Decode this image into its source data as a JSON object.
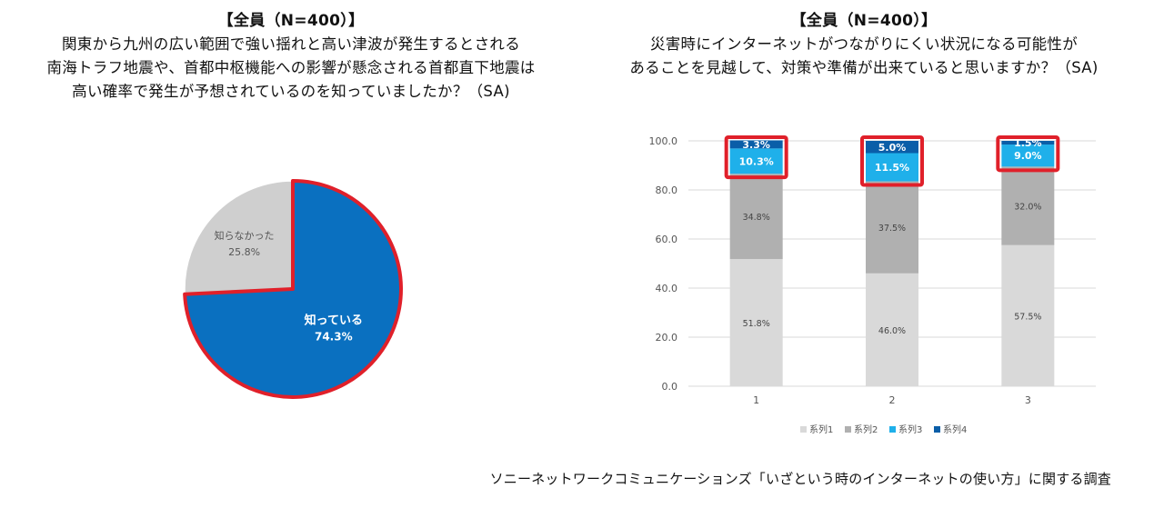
{
  "left": {
    "header": "【全員（N=400）】",
    "question_lines": [
      "関東から九州の広い範囲で強い揺れと高い津波が発生するとされる",
      "南海トラフ地震や、首都中枢機能への影響が懸念される首都直下地震は",
      "高い確率で発生が予想されているのを知っていましたか？（SA)"
    ]
  },
  "right": {
    "header": "【全員（N=400）】",
    "question_lines": [
      "災害時にインターネットがつながりにくい状況になる可能性が",
      "あることを見越して、対策や準備が出来ていると思いますか？（SA)"
    ]
  },
  "footer": "ソニーネットワークコミュニケーションズ「いざという時のインターネットの使い方」に関する調査",
  "chart_data": [
    {
      "type": "pie",
      "slices": [
        {
          "label": "知っている",
          "value": 74.3,
          "value_label": "74.3%",
          "color": "#0a70c0"
        },
        {
          "label": "知らなかった",
          "value": 25.8,
          "value_label": "25.8%",
          "color": "#cfcfcf"
        }
      ],
      "highlight_color": "#e0202a"
    },
    {
      "type": "bar",
      "stacked": true,
      "categories": [
        "1",
        "2",
        "3"
      ],
      "series": [
        {
          "name": "系列1",
          "values": [
            51.8,
            46.0,
            57.5
          ],
          "labels": [
            "51.8%",
            "46.0%",
            "57.5%"
          ],
          "color": "#d9d9d9"
        },
        {
          "name": "系列2",
          "values": [
            34.8,
            37.5,
            32.0
          ],
          "labels": [
            "34.8%",
            "37.5%",
            "32.0%"
          ],
          "color": "#b0b0b0"
        },
        {
          "name": "系列3",
          "values": [
            10.3,
            11.5,
            9.0
          ],
          "labels": [
            "10.3%",
            "11.5%",
            "9.0%"
          ],
          "color": "#1fb0ea"
        },
        {
          "name": "系列4",
          "values": [
            3.3,
            5.0,
            1.5
          ],
          "labels": [
            "3.3%",
            "5.0%",
            "1.5%"
          ],
          "color": "#0a5ea8"
        }
      ],
      "ylim": [
        0,
        100
      ],
      "yticks": [
        "0.0",
        "20.0",
        "40.0",
        "60.0",
        "80.0",
        "100.0"
      ],
      "grid": true,
      "legend": "bottom",
      "highlight_color": "#e0202a"
    }
  ]
}
